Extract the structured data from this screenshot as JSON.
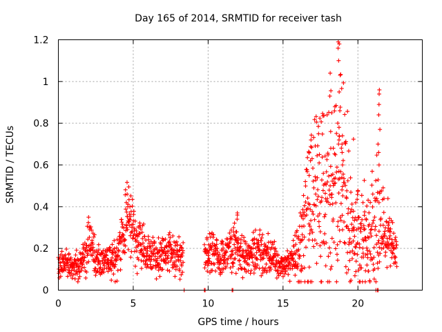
{
  "chart_data": {
    "type": "scatter",
    "title": "Day 165 of 2014, SRMTID for receiver tash",
    "xlabel": "GPS time / hours",
    "ylabel": "SRMTID / TECUs",
    "xlim": [
      0,
      24.3
    ],
    "ylim": [
      0,
      1.2
    ],
    "xticks": [
      0,
      5,
      10,
      15,
      20
    ],
    "xtick_labels": [
      "0",
      "5",
      "10",
      "15",
      "20"
    ],
    "yticks": [
      0,
      0.2,
      0.4,
      0.6,
      0.8,
      1,
      1.2
    ],
    "ytick_labels": [
      "0",
      "0.2",
      "0.4",
      "0.6",
      "0.8",
      "1",
      "1.2"
    ],
    "grid": true,
    "marker": "+",
    "color": "#ff0000",
    "series": [
      {
        "name": "SRMTID",
        "profile": [
          [
            0,
            0.12
          ],
          [
            0.5,
            0.13
          ],
          [
            1.0,
            0.11
          ],
          [
            1.5,
            0.14
          ],
          [
            1.9,
            0.17
          ],
          [
            2.0,
            0.3
          ],
          [
            2.2,
            0.22
          ],
          [
            2.5,
            0.14
          ],
          [
            3.0,
            0.13
          ],
          [
            3.5,
            0.15
          ],
          [
            4.0,
            0.16
          ],
          [
            4.3,
            0.26
          ],
          [
            4.6,
            0.33
          ],
          [
            4.9,
            0.3
          ],
          [
            5.2,
            0.24
          ],
          [
            5.6,
            0.22
          ],
          [
            6.0,
            0.18
          ],
          [
            6.5,
            0.15
          ],
          [
            7.0,
            0.16
          ],
          [
            7.5,
            0.19
          ],
          [
            8.0,
            0.17
          ],
          [
            8.3,
            0.16
          ],
          [
            9.8,
            0.17
          ],
          [
            10.3,
            0.19
          ],
          [
            10.8,
            0.14
          ],
          [
            11.3,
            0.2
          ],
          [
            11.8,
            0.22
          ],
          [
            12.3,
            0.16
          ],
          [
            12.8,
            0.16
          ],
          [
            13.3,
            0.2
          ],
          [
            13.8,
            0.19
          ],
          [
            14.3,
            0.15
          ],
          [
            14.8,
            0.12
          ],
          [
            15.3,
            0.13
          ],
          [
            15.8,
            0.18
          ],
          [
            16.3,
            0.24
          ],
          [
            16.8,
            0.38
          ],
          [
            17.2,
            0.48
          ],
          [
            17.6,
            0.44
          ],
          [
            18.0,
            0.42
          ],
          [
            18.4,
            0.46
          ],
          [
            18.8,
            0.5
          ],
          [
            19.2,
            0.4
          ],
          [
            19.6,
            0.32
          ],
          [
            20.0,
            0.3
          ],
          [
            20.4,
            0.26
          ],
          [
            20.8,
            0.24
          ],
          [
            21.2,
            0.36
          ],
          [
            21.5,
            0.3
          ],
          [
            21.9,
            0.28
          ],
          [
            22.2,
            0.22
          ],
          [
            22.6,
            0.17
          ]
        ],
        "count": 1650,
        "gaps": [
          [
            8.35,
            9.75
          ]
        ],
        "bursts": [
          {
            "x": 18.75,
            "values": [
              1.19,
              1.18,
              1.16,
              1.1,
              1.03,
              0.95,
              0.86,
              0.78,
              0.72
            ]
          },
          {
            "x": 18.2,
            "values": [
              1.04,
              0.93,
              0.85,
              0.76,
              0.68
            ]
          },
          {
            "x": 21.4,
            "values": [
              0.96,
              0.94,
              0.89,
              0.84,
              0.77,
              0.7,
              0.66,
              0.6
            ]
          },
          {
            "x": 19.0,
            "values": [
              0.74,
              0.7,
              0.66,
              0.6
            ]
          },
          {
            "x": 4.6,
            "values": [
              0.46,
              0.42,
              0.4
            ]
          },
          {
            "x": 11.9,
            "values": [
              0.37,
              0.36,
              0.34
            ]
          },
          {
            "x": 16.8,
            "values": [
              0.72,
              0.66,
              0.62,
              0.55
            ]
          }
        ],
        "zero_points": [
          8.4,
          9.75,
          9.8,
          11.6,
          11.65,
          21.2,
          21.3,
          21.35
        ]
      }
    ]
  }
}
